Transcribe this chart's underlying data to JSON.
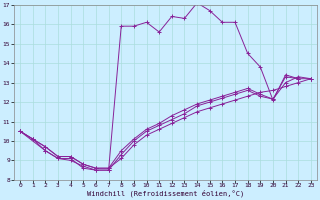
{
  "xlabel": "Windchill (Refroidissement éolien,°C)",
  "bg_color": "#cceeff",
  "line_color": "#882299",
  "grid_color": "#aadddd",
  "xlim": [
    -0.5,
    23.5
  ],
  "ylim": [
    8,
    17
  ],
  "xticks": [
    0,
    1,
    2,
    3,
    4,
    5,
    6,
    7,
    8,
    9,
    10,
    11,
    12,
    13,
    14,
    15,
    16,
    17,
    18,
    19,
    20,
    21,
    22,
    23
  ],
  "yticks": [
    8,
    9,
    10,
    11,
    12,
    13,
    14,
    15,
    16,
    17
  ],
  "line1_x": [
    0,
    1,
    2,
    3,
    4,
    5,
    6,
    7,
    8,
    9,
    10,
    11,
    12,
    13,
    14,
    15,
    16,
    17,
    18,
    19,
    20,
    21,
    22
  ],
  "line1_y": [
    10.5,
    10.1,
    9.5,
    9.1,
    9.1,
    8.6,
    8.5,
    8.5,
    15.9,
    15.9,
    16.1,
    15.6,
    16.4,
    16.3,
    17.1,
    16.7,
    16.1,
    16.1,
    14.5,
    13.8,
    12.1,
    13.4,
    13.2
  ],
  "line2_x": [
    0,
    1,
    2,
    3,
    4,
    5,
    6,
    7,
    8,
    9,
    10,
    11,
    12,
    13,
    14,
    15,
    16,
    17,
    18,
    19,
    20,
    21,
    22,
    23
  ],
  "line2_y": [
    10.5,
    10.1,
    9.7,
    9.2,
    9.2,
    8.8,
    8.6,
    8.6,
    9.1,
    9.8,
    10.3,
    10.6,
    10.9,
    11.2,
    11.5,
    11.7,
    11.9,
    12.1,
    12.3,
    12.5,
    12.6,
    12.8,
    13.0,
    13.2
  ],
  "line3_x": [
    0,
    1,
    2,
    3,
    4,
    5,
    6,
    7,
    8,
    9,
    10,
    11,
    12,
    13,
    14,
    15,
    16,
    17,
    18,
    19,
    20,
    21,
    22,
    23
  ],
  "line3_y": [
    10.5,
    10.1,
    9.7,
    9.2,
    9.2,
    8.8,
    8.6,
    8.6,
    9.5,
    10.1,
    10.6,
    10.9,
    11.3,
    11.6,
    11.9,
    12.1,
    12.3,
    12.5,
    12.7,
    12.4,
    12.15,
    13.3,
    13.2,
    13.2
  ],
  "line4_x": [
    0,
    2,
    3,
    4,
    5,
    6,
    7,
    8,
    9,
    10,
    11,
    12,
    13,
    14,
    15,
    16,
    17,
    18,
    19,
    20,
    21,
    22,
    23
  ],
  "line4_y": [
    10.5,
    9.5,
    9.1,
    9.0,
    8.7,
    8.5,
    8.5,
    9.3,
    10.0,
    10.5,
    10.8,
    11.1,
    11.4,
    11.8,
    12.0,
    12.2,
    12.4,
    12.6,
    12.3,
    12.15,
    13.0,
    13.3,
    13.2
  ]
}
